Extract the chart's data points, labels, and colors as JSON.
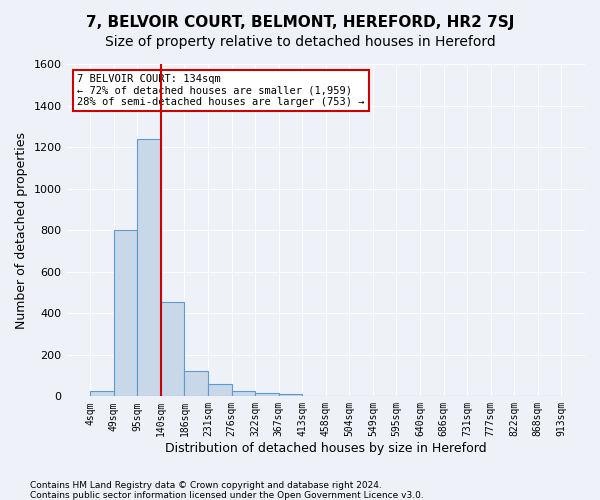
{
  "title": "7, BELVOIR COURT, BELMONT, HEREFORD, HR2 7SJ",
  "subtitle": "Size of property relative to detached houses in Hereford",
  "xlabel": "Distribution of detached houses by size in Hereford",
  "ylabel": "Number of detached properties",
  "footer1": "Contains HM Land Registry data © Crown copyright and database right 2024.",
  "footer2": "Contains public sector information licensed under the Open Government Licence v3.0.",
  "bin_labels": [
    "4sqm",
    "49sqm",
    "95sqm",
    "140sqm",
    "186sqm",
    "231sqm",
    "276sqm",
    "322sqm",
    "367sqm",
    "413sqm",
    "458sqm",
    "504sqm",
    "549sqm",
    "595sqm",
    "640sqm",
    "686sqm",
    "731sqm",
    "777sqm",
    "822sqm",
    "868sqm",
    "913sqm"
  ],
  "bar_values": [
    25,
    800,
    1240,
    455,
    120,
    60,
    25,
    18,
    12,
    0,
    0,
    0,
    0,
    0,
    0,
    0,
    0,
    0,
    0,
    0
  ],
  "bar_color": "#c8d8e8",
  "bar_edge_color": "#5b9bd5",
  "property_line_x": 3,
  "property_sqm": 134,
  "annotation_text1": "7 BELVOIR COURT: 134sqm",
  "annotation_text2": "← 72% of detached houses are smaller (1,959)",
  "annotation_text3": "28% of semi-detached houses are larger (753) →",
  "annotation_box_color": "#ffffff",
  "annotation_box_edge": "#cc0000",
  "vline_color": "#cc0000",
  "ylim": [
    0,
    1600
  ],
  "yticks": [
    0,
    200,
    400,
    600,
    800,
    1000,
    1200,
    1400,
    1600
  ],
  "bg_color": "#eef2f8",
  "plot_bg_color": "#eef2f8",
  "grid_color": "#ffffff",
  "title_fontsize": 11,
  "subtitle_fontsize": 10,
  "label_fontsize": 9
}
